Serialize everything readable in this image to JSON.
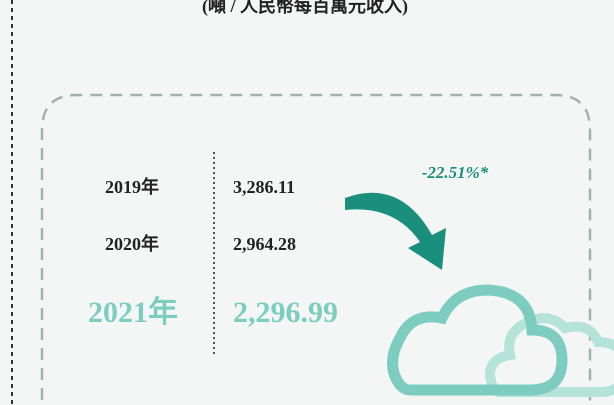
{
  "subtitle": "(噸 / 人民幣每百萬元收入)",
  "rows": [
    {
      "year": "2019年",
      "value": "3,286.11"
    },
    {
      "year": "2020年",
      "value": "2,964.28"
    },
    {
      "year": "2021年",
      "value": "2,296.99"
    }
  ],
  "change": "-22.51%*"
}
